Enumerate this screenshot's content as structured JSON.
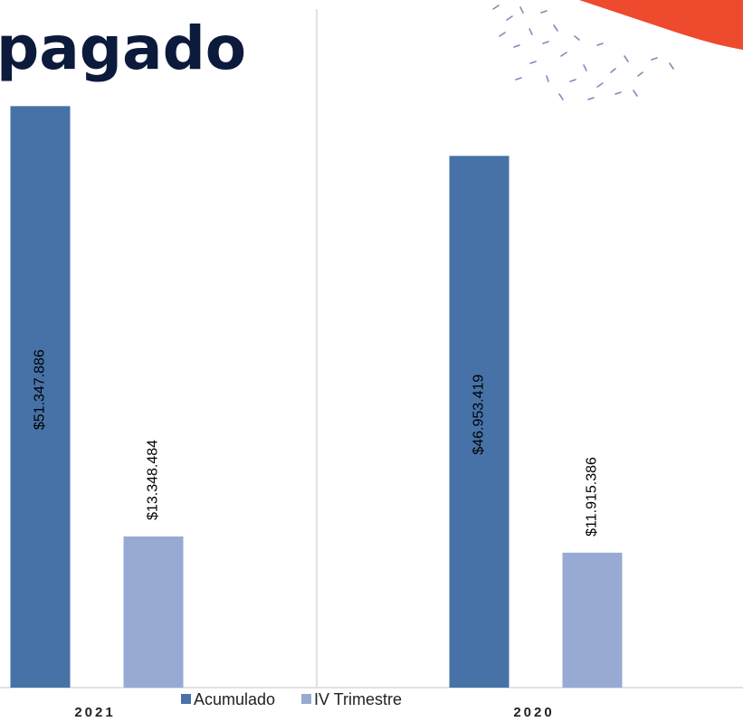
{
  "chart_data": {
    "type": "bar",
    "title": "pagado",
    "categories": [
      "2021",
      "2020"
    ],
    "series": [
      {
        "name": "Acumulado",
        "color": "#4672a8",
        "values": [
          51347886,
          46953419
        ],
        "value_labels": [
          "$51.347.886",
          "$46.953.419"
        ]
      },
      {
        "name": "IV Trimestre",
        "color": "#97aad3",
        "values": [
          13348484,
          11915386
        ],
        "value_labels": [
          "$13.348.484",
          "$11.915.386"
        ]
      }
    ],
    "ylim": [
      0,
      60000000
    ]
  }
}
